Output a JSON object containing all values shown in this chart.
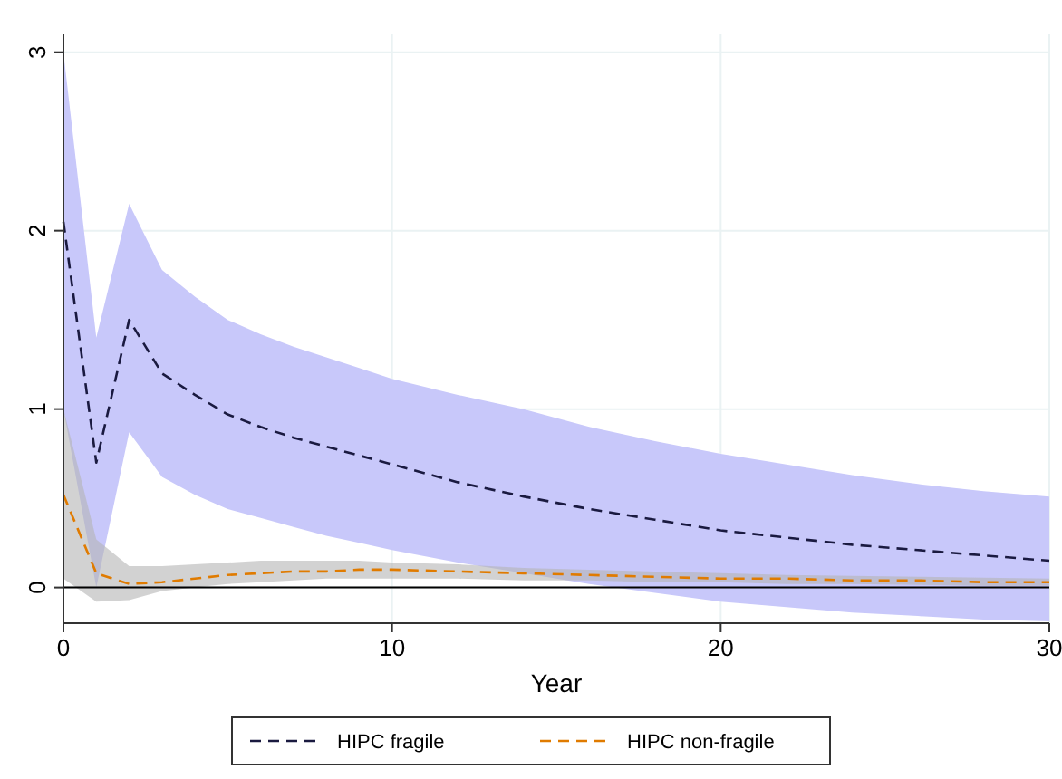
{
  "chart_data": {
    "type": "line",
    "xlabel": "Year",
    "x": [
      0,
      1,
      2,
      3,
      4,
      5,
      6,
      7,
      8,
      9,
      10,
      12,
      14,
      16,
      18,
      20,
      22,
      24,
      26,
      28,
      30
    ],
    "series": [
      {
        "name": "HIPC fragile",
        "color": "#1a1a40",
        "values": [
          2.05,
          0.7,
          1.5,
          1.2,
          1.08,
          0.97,
          0.9,
          0.84,
          0.79,
          0.74,
          0.69,
          0.59,
          0.51,
          0.44,
          0.38,
          0.32,
          0.28,
          0.24,
          0.21,
          0.18,
          0.15
        ],
        "upper": [
          3.0,
          1.4,
          2.15,
          1.78,
          1.63,
          1.5,
          1.42,
          1.35,
          1.29,
          1.23,
          1.17,
          1.08,
          1.0,
          0.9,
          0.82,
          0.75,
          0.69,
          0.63,
          0.58,
          0.54,
          0.51
        ],
        "lower": [
          1.0,
          0.0,
          0.87,
          0.62,
          0.52,
          0.44,
          0.39,
          0.34,
          0.29,
          0.25,
          0.21,
          0.14,
          0.08,
          0.02,
          -0.03,
          -0.08,
          -0.11,
          -0.14,
          -0.16,
          -0.18,
          -0.19
        ]
      },
      {
        "name": "HIPC non-fragile",
        "color": "#e07b00",
        "values": [
          0.52,
          0.08,
          0.02,
          0.03,
          0.05,
          0.07,
          0.08,
          0.09,
          0.09,
          0.1,
          0.1,
          0.09,
          0.08,
          0.07,
          0.06,
          0.05,
          0.05,
          0.04,
          0.04,
          0.03,
          0.03
        ],
        "upper": [
          1.0,
          0.27,
          0.12,
          0.12,
          0.13,
          0.14,
          0.15,
          0.15,
          0.15,
          0.15,
          0.14,
          0.13,
          0.11,
          0.1,
          0.09,
          0.08,
          0.07,
          0.065,
          0.06,
          0.055,
          0.05
        ],
        "lower": [
          0.05,
          -0.08,
          -0.07,
          -0.02,
          0.0,
          0.02,
          0.03,
          0.04,
          0.05,
          0.05,
          0.05,
          0.05,
          0.04,
          0.04,
          0.03,
          0.03,
          0.02,
          0.02,
          0.015,
          0.01,
          0.01
        ]
      }
    ],
    "xlim": [
      0,
      30
    ],
    "xticks": [
      0,
      10,
      20,
      30
    ],
    "ylim": [
      -0.2,
      3.1
    ],
    "yticks": [
      0,
      1,
      2,
      3
    ],
    "ref_lines": [
      {
        "axis": "y",
        "value": 0,
        "color": "#000000",
        "line_style": "solid"
      }
    ],
    "grid": true,
    "legend": "bottom",
    "line_style": "dashed"
  }
}
